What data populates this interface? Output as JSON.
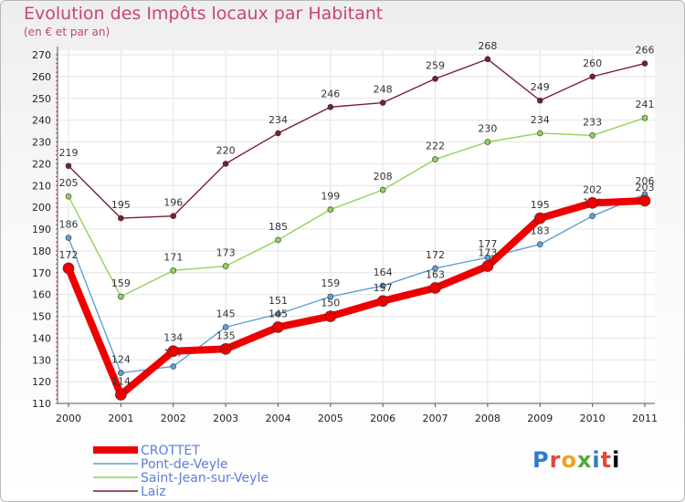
{
  "chart_data": {
    "type": "line",
    "title": "Evolution des Impôts locaux par Habitant",
    "subtitle": "(en € et par an)",
    "x": [
      "2000",
      "2001",
      "2002",
      "2003",
      "2004",
      "2005",
      "2006",
      "2007",
      "2008",
      "2009",
      "2010",
      "2011"
    ],
    "ylim": [
      110,
      270
    ],
    "yticks": [
      110,
      120,
      130,
      140,
      150,
      160,
      170,
      180,
      190,
      200,
      210,
      220,
      230,
      240,
      250,
      260,
      270
    ],
    "series": [
      {
        "name": "Laiz",
        "color": "#7a1f2c",
        "values": [
          219,
          195,
          196,
          220,
          234,
          246,
          248,
          259,
          268,
          249,
          260,
          266
        ]
      },
      {
        "name": "Saint-Jean-sur-Veyle",
        "color": "#8fd35a",
        "values": [
          205,
          159,
          171,
          173,
          185,
          199,
          208,
          222,
          230,
          234,
          233,
          241
        ]
      },
      {
        "name": "Pont-de-Veyle",
        "color": "#5f9fd4",
        "values": [
          186,
          124,
          127,
          145,
          151,
          159,
          164,
          172,
          177,
          183,
          196,
          206
        ]
      },
      {
        "name": "CROTTET",
        "color": "#ee0000",
        "values": [
          172,
          114,
          134,
          135,
          145,
          150,
          157,
          163,
          173,
          195,
          202,
          203
        ]
      }
    ],
    "legend": [
      "CROTTET",
      "Pont-de-Veyle",
      "Saint-Jean-sur-Veyle",
      "Laiz"
    ]
  },
  "branding": {
    "logo_letters": [
      "P",
      "r",
      "o",
      "x",
      "i",
      "t",
      "i"
    ]
  }
}
